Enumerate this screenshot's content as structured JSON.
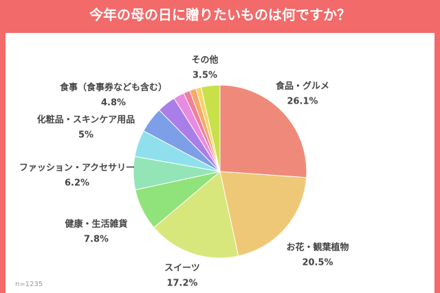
{
  "chart_data": {
    "type": "pie",
    "title": "今年の母の日に贈りたいものは何ですか？",
    "note": "n=1235",
    "categories": [
      "食品・グルメ",
      "お花・観葉植物",
      "スイーツ",
      "健康・生活雑貨",
      "ファッション・アクセサリー",
      "化粧品・スキンケア用品",
      "食事（食事券なども含む）",
      null,
      null,
      null,
      null,
      null,
      "その他"
    ],
    "values": [
      26.1,
      20.5,
      17.2,
      7.8,
      6.2,
      5,
      4.8,
      3.5,
      2,
      1.2,
      1.2,
      1.0,
      3.5
    ],
    "value_labels": [
      "26.1%",
      "20.5%",
      "17.2%",
      "7.8%",
      "6.2%",
      "5%",
      "4.8%",
      null,
      null,
      null,
      null,
      null,
      "3.5%"
    ],
    "colors": [
      "#ef8a7a",
      "#efc877",
      "#d8e77c",
      "#90e27a",
      "#93e5b8",
      "#8fe0ec",
      "#7d9fe8",
      "#a97ee8",
      "#e98be0",
      "#ef7f9a",
      "#f7a86a",
      "#f7d46a",
      "#c8e04a"
    ]
  }
}
